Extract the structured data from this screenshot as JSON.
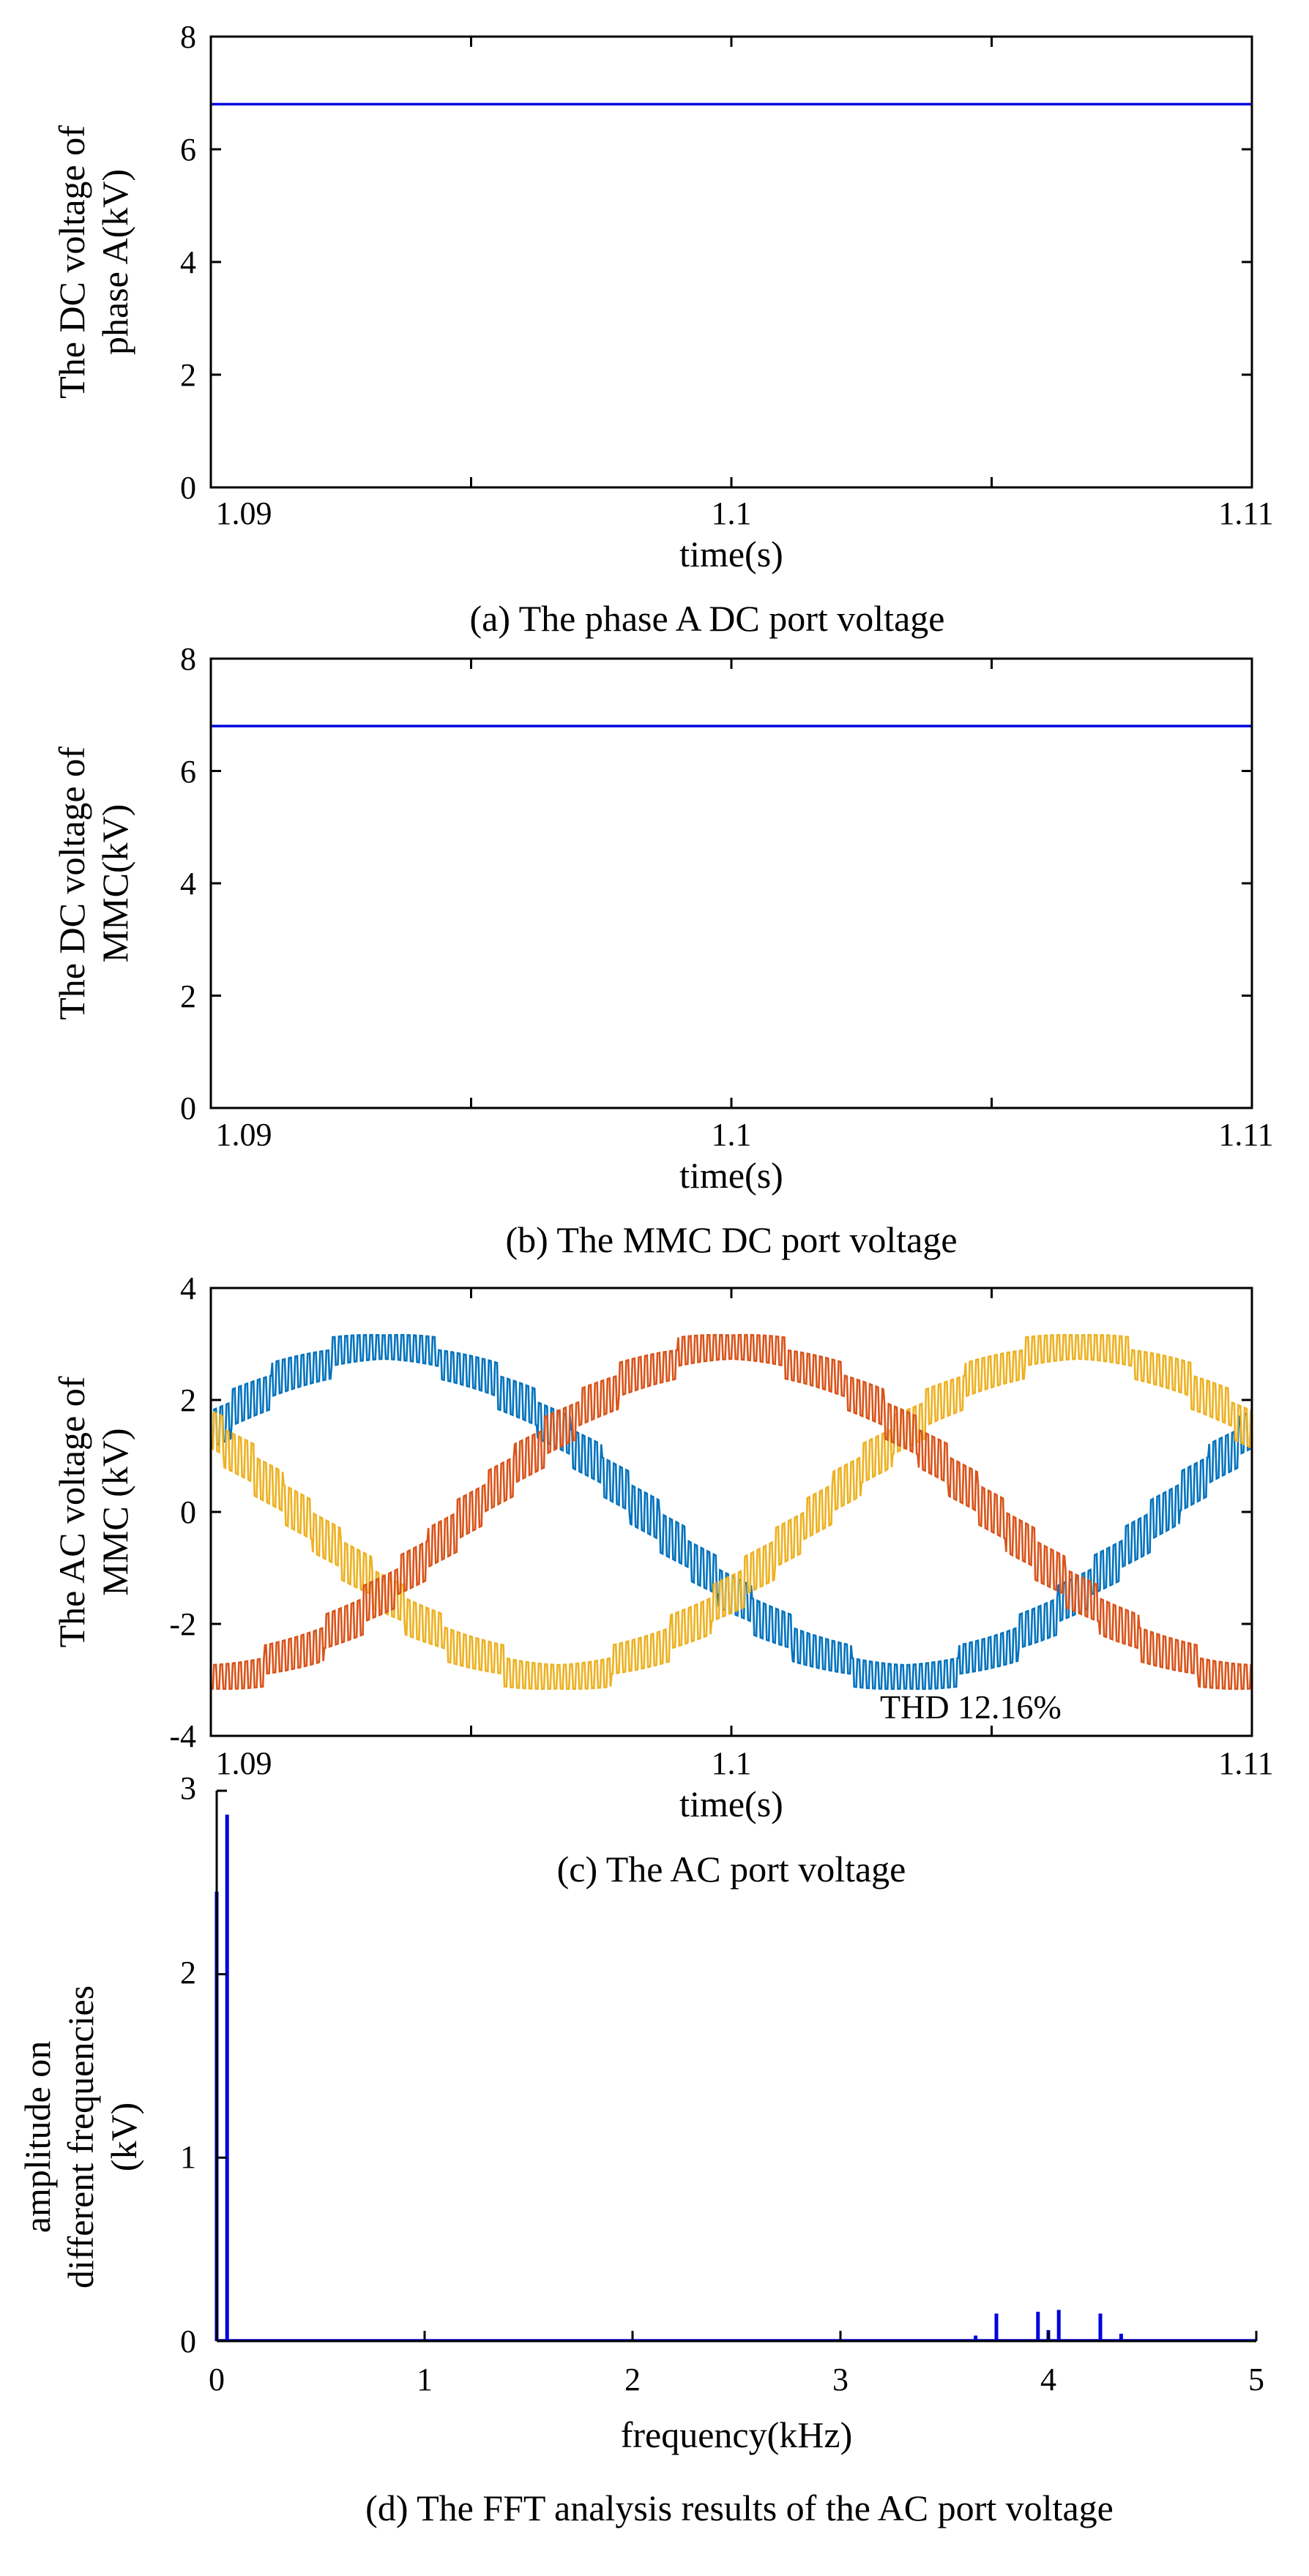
{
  "colors": {
    "blue_trace": "#0000e0",
    "phase_blue": "#0072bd",
    "phase_orange": "#d95319",
    "phase_yellow": "#edb120",
    "axis": "#000000"
  },
  "chart_data": [
    {
      "id": "a",
      "type": "line",
      "caption": "(a) The phase A DC port voltage",
      "xlabel": "time(s)",
      "ylabel": [
        "The DC  voltage of",
        "phase A(kV)"
      ],
      "xlim": [
        1.09,
        1.11
      ],
      "ylim": [
        0,
        8
      ],
      "xticks": [
        1.09,
        1.1,
        1.11
      ],
      "xtick_labels": [
        "1.09",
        "1.1",
        "1.11"
      ],
      "yticks": [
        0,
        2,
        4,
        6,
        8
      ],
      "ytick_labels": [
        "0",
        "2",
        "4",
        "6",
        "8"
      ],
      "series": [
        {
          "name": "DC voltage phase A",
          "x": [
            1.09,
            1.11
          ],
          "y": [
            6.8,
            6.8
          ]
        }
      ]
    },
    {
      "id": "b",
      "type": "line",
      "caption": "(b) The MMC DC port voltage",
      "xlabel": "time(s)",
      "ylabel": [
        "The DC voltage of",
        "MMC(kV)"
      ],
      "xlim": [
        1.09,
        1.11
      ],
      "ylim": [
        0,
        8
      ],
      "xticks": [
        1.09,
        1.1,
        1.11
      ],
      "xtick_labels": [
        "1.09",
        "1.1",
        "1.11"
      ],
      "yticks": [
        0,
        2,
        4,
        6,
        8
      ],
      "ytick_labels": [
        "0",
        "2",
        "4",
        "6",
        "8"
      ],
      "series": [
        {
          "name": "MMC DC voltage",
          "x": [
            1.09,
            1.11
          ],
          "y": [
            6.8,
            6.8
          ]
        }
      ]
    },
    {
      "id": "c",
      "type": "line",
      "caption": "(c) The AC port voltage",
      "xlabel": "time(s)",
      "ylabel": [
        "The AC voltage of",
        "MMC (kV)"
      ],
      "xlim": [
        1.09,
        1.11
      ],
      "ylim": [
        -4,
        4
      ],
      "xticks": [
        1.09,
        1.1,
        1.11
      ],
      "xtick_labels": [
        "1.09",
        "1.1",
        "1.11"
      ],
      "yticks": [
        -4,
        -2,
        0,
        2,
        4
      ],
      "ytick_labels": [
        "-4",
        "-2",
        "0",
        "2",
        "4"
      ],
      "annotation": "THD 12.16%",
      "series": [
        {
          "name": "phase blue",
          "amplitude": 2.9,
          "frequency_hz": 50,
          "phase_deg": -150
        },
        {
          "name": "phase orange",
          "amplitude": 2.9,
          "frequency_hz": 50,
          "phase_deg": 90
        },
        {
          "name": "phase yellow",
          "amplitude": 2.9,
          "frequency_hz": 50,
          "phase_deg": -30
        }
      ],
      "sample_step_s": 2e-05,
      "ripple_kv": 0.35
    },
    {
      "id": "d",
      "type": "bar",
      "caption": "(d) The FFT analysis results of the AC port voltage",
      "xlabel": "frequency(kHz)",
      "ylabel": [
        "amplitude on",
        "different frequencies",
        "(kV)"
      ],
      "xlim": [
        0,
        5
      ],
      "ylim": [
        0,
        3
      ],
      "xticks": [
        0,
        1,
        2,
        3,
        4,
        5
      ],
      "xtick_labels": [
        "0",
        "1",
        "2",
        "3",
        "4",
        "5"
      ],
      "yticks": [
        0,
        1,
        2,
        3
      ],
      "ytick_labels": [
        "0",
        "1",
        "2",
        "3"
      ],
      "bars": [
        {
          "f": 0.0,
          "a": 2.45
        },
        {
          "f": 0.05,
          "a": 2.87
        },
        {
          "f": 3.65,
          "a": 0.03
        },
        {
          "f": 3.75,
          "a": 0.15
        },
        {
          "f": 3.95,
          "a": 0.16
        },
        {
          "f": 4.0,
          "a": 0.06
        },
        {
          "f": 4.05,
          "a": 0.17
        },
        {
          "f": 4.25,
          "a": 0.15
        },
        {
          "f": 4.35,
          "a": 0.04
        }
      ]
    }
  ]
}
